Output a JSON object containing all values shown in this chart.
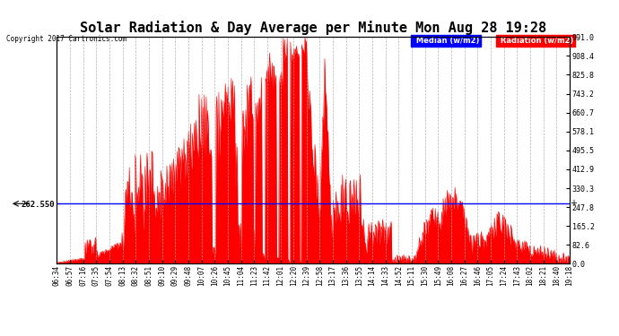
{
  "title": "Solar Radiation & Day Average per Minute Mon Aug 28 19:28",
  "copyright": "Copyright 2017 Cartronics.com",
  "median_value": 262.55,
  "y_max": 991.0,
  "y_min": 0.0,
  "y_ticks_right": [
    0.0,
    82.6,
    165.2,
    247.8,
    330.3,
    412.9,
    495.5,
    578.1,
    660.7,
    743.2,
    825.8,
    908.4,
    991.0
  ],
  "background_color": "#ffffff",
  "fill_color": "#ff0000",
  "line_color": "#ff0000",
  "median_line_color": "#0000ff",
  "legend_median_bg": "#0000ff",
  "legend_radiation_bg": "#ff0000",
  "title_fontsize": 11,
  "x_label_fontsize": 5.5,
  "x_tick_labels": [
    "06:34",
    "06:57",
    "07:16",
    "07:35",
    "07:54",
    "08:13",
    "08:32",
    "08:51",
    "09:10",
    "09:29",
    "09:48",
    "10:07",
    "10:26",
    "10:45",
    "11:04",
    "11:23",
    "11:42",
    "12:01",
    "12:20",
    "12:39",
    "12:58",
    "13:17",
    "13:36",
    "13:55",
    "14:14",
    "14:33",
    "14:52",
    "15:11",
    "15:30",
    "15:49",
    "16:08",
    "16:27",
    "16:46",
    "17:05",
    "17:24",
    "17:43",
    "18:02",
    "18:21",
    "18:40",
    "19:18"
  ],
  "num_points": 780
}
